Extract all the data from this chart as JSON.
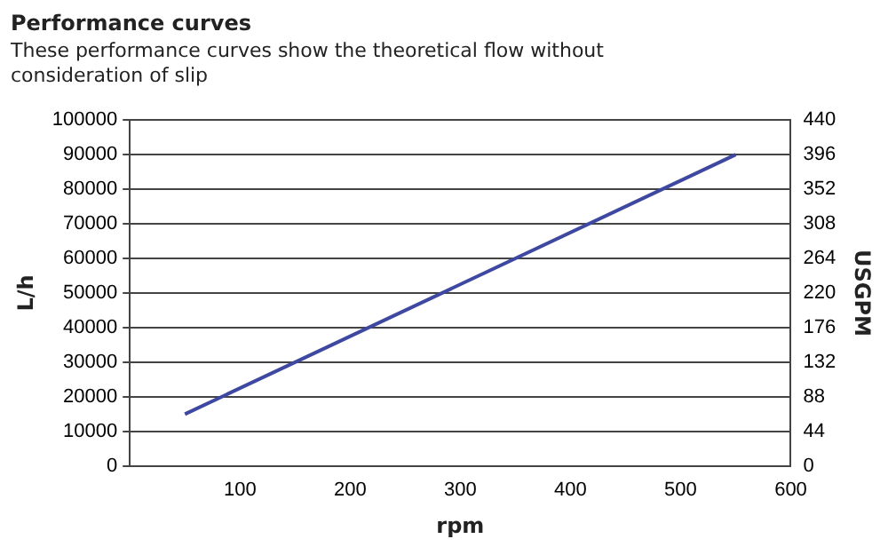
{
  "chart_data": {
    "type": "line",
    "title": "Performance curves",
    "subtitle": "These performance curves show the theoretical flow without consideration of slip",
    "xlabel": "rpm",
    "ylabel": "L/h",
    "y2label": "USGPM",
    "x": [
      50,
      550
    ],
    "series": [
      {
        "color": "#3f48a0",
        "values": [
          15000,
          90000
        ]
      }
    ],
    "xlim": [
      0,
      600
    ],
    "xticks": [
      {
        "value": 0,
        "label": null
      },
      100,
      200,
      300,
      400,
      500,
      600
    ],
    "ylim": [
      0,
      100000
    ],
    "yticks": [
      0,
      10000,
      20000,
      30000,
      40000,
      50000,
      60000,
      70000,
      80000,
      90000,
      100000
    ],
    "y2lim": [
      0,
      440
    ],
    "y2ticks": [
      0,
      44,
      88,
      132,
      176,
      220,
      264,
      308,
      352,
      396,
      440
    ],
    "grid": "y",
    "legend": false,
    "marker": "none",
    "line_style": "solid"
  }
}
